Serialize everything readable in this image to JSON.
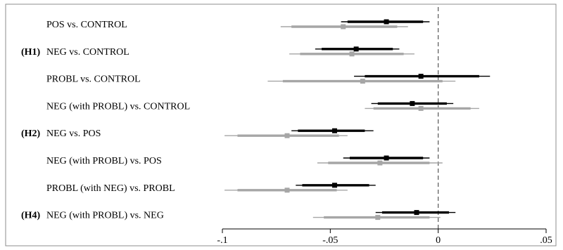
{
  "chart_data": {
    "type": "coefficient-plot",
    "xlim": [
      -0.1,
      0.05
    ],
    "x_ticks": [
      -0.1,
      -0.05,
      0,
      0.05
    ],
    "x_tick_labels": [
      "-.1",
      "-.05",
      "0",
      ".05"
    ],
    "reference_line": 0,
    "colors": {
      "model_a": "#000000",
      "model_b": "#a6a6a6"
    },
    "rows": [
      {
        "hypothesis": "",
        "label": "POS vs. CONTROL",
        "a": {
          "estimate": -0.024,
          "ci90": [
            -0.042,
            -0.007
          ],
          "ci95": [
            -0.045,
            -0.004
          ]
        },
        "b": {
          "estimate": -0.044,
          "ci90": [
            -0.068,
            -0.019
          ],
          "ci95": [
            -0.073,
            -0.014
          ]
        }
      },
      {
        "hypothesis": "(H1)",
        "label": "NEG vs. CONTROL",
        "a": {
          "estimate": -0.038,
          "ci90": [
            -0.054,
            -0.021
          ],
          "ci95": [
            -0.057,
            -0.018
          ]
        },
        "b": {
          "estimate": -0.04,
          "ci90": [
            -0.064,
            -0.016
          ],
          "ci95": [
            -0.069,
            -0.011
          ]
        }
      },
      {
        "hypothesis": "",
        "label": "PROBL vs. CONTROL",
        "a": {
          "estimate": -0.008,
          "ci90": [
            -0.034,
            0.019
          ],
          "ci95": [
            -0.039,
            0.024
          ]
        },
        "b": {
          "estimate": -0.035,
          "ci90": [
            -0.072,
            0.002
          ],
          "ci95": [
            -0.079,
            0.008
          ]
        }
      },
      {
        "hypothesis": "",
        "label": "NEG (with PROBL) vs. CONTROL",
        "a": {
          "estimate": -0.012,
          "ci90": [
            -0.028,
            0.004
          ],
          "ci95": [
            -0.031,
            0.007
          ]
        },
        "b": {
          "estimate": -0.008,
          "ci90": [
            -0.03,
            0.015
          ],
          "ci95": [
            -0.034,
            0.019
          ]
        }
      },
      {
        "hypothesis": "(H2)",
        "label": "NEG vs. POS",
        "a": {
          "estimate": -0.048,
          "ci90": [
            -0.065,
            -0.034
          ],
          "ci95": [
            -0.068,
            -0.03
          ]
        },
        "b": {
          "estimate": -0.07,
          "ci90": [
            -0.093,
            -0.046
          ],
          "ci95": [
            -0.099,
            -0.042
          ]
        }
      },
      {
        "hypothesis": "",
        "label": "NEG (with PROBL) vs. POS",
        "a": {
          "estimate": -0.024,
          "ci90": [
            -0.041,
            -0.007
          ],
          "ci95": [
            -0.044,
            -0.004
          ]
        },
        "b": {
          "estimate": -0.027,
          "ci90": [
            -0.051,
            -0.004
          ],
          "ci95": [
            -0.056,
            0.002
          ]
        }
      },
      {
        "hypothesis": "",
        "label": "PROBL (with NEG) vs. PROBL",
        "a": {
          "estimate": -0.048,
          "ci90": [
            -0.063,
            -0.032
          ],
          "ci95": [
            -0.066,
            -0.029
          ]
        },
        "b": {
          "estimate": -0.07,
          "ci90": [
            -0.093,
            -0.047
          ],
          "ci95": [
            -0.099,
            -0.042
          ]
        }
      },
      {
        "hypothesis": "(H4)",
        "label": "NEG (with PROBL) vs. NEG",
        "a": {
          "estimate": -0.01,
          "ci90": [
            -0.026,
            0.005
          ],
          "ci95": [
            -0.029,
            0.008
          ]
        },
        "b": {
          "estimate": -0.028,
          "ci90": [
            -0.053,
            -0.004
          ],
          "ci95": [
            -0.058,
            0.001
          ]
        }
      }
    ]
  }
}
